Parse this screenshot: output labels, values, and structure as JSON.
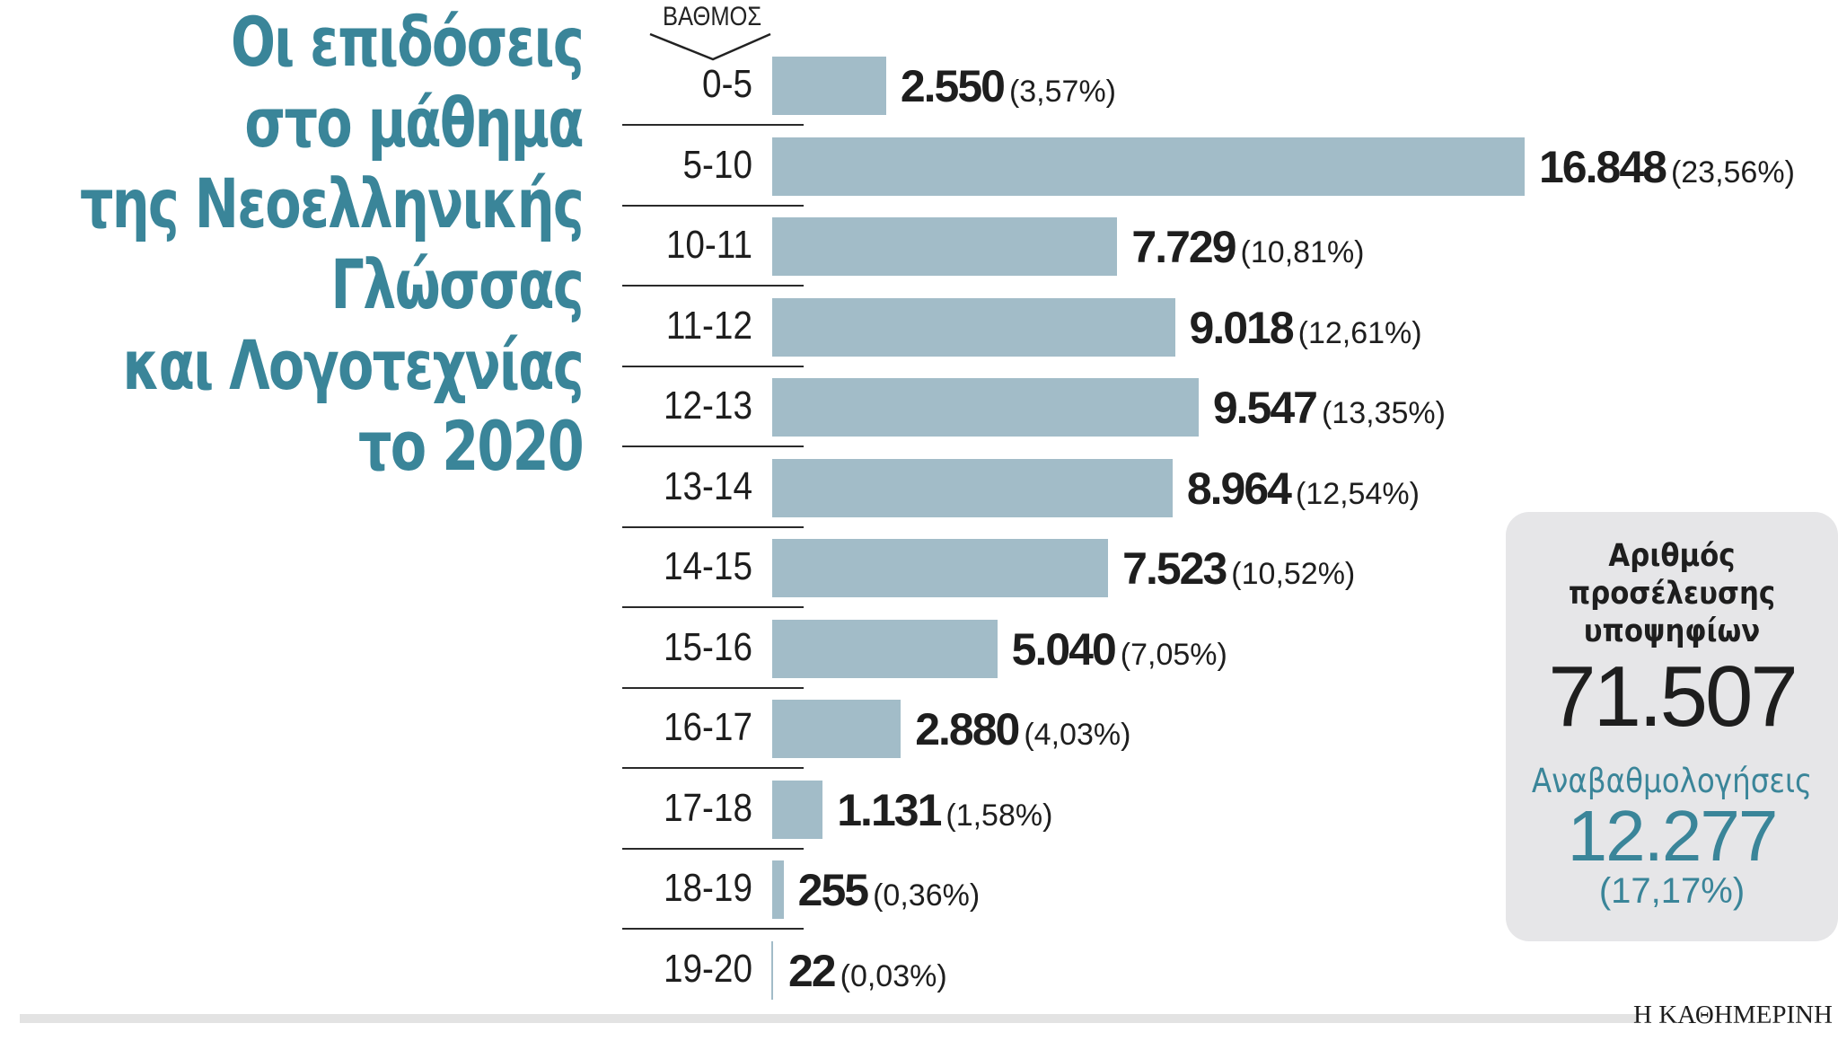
{
  "title": {
    "lines": [
      "Οι επιδόσεις",
      "στο μάθημα",
      "της Νεοελληνικής",
      "Γλώσσας",
      "και Λογοτεχνίας",
      "το 2020"
    ],
    "color": "#3a8599"
  },
  "axis": {
    "category_label": "ΒΑΘΜΟΣ"
  },
  "rows": [
    {
      "grade": "0-5",
      "value_label": "2.550",
      "pct_label": "(3,57%)"
    },
    {
      "grade": "5-10",
      "value_label": "16.848",
      "pct_label": "(23,56%)"
    },
    {
      "grade": "10-11",
      "value_label": "7.729",
      "pct_label": "(10,81%)"
    },
    {
      "grade": "11-12",
      "value_label": "9.018",
      "pct_label": "(12,61%)"
    },
    {
      "grade": "12-13",
      "value_label": "9.547",
      "pct_label": "(13,35%)"
    },
    {
      "grade": "13-14",
      "value_label": "8.964",
      "pct_label": "(12,54%)"
    },
    {
      "grade": "14-15",
      "value_label": "7.523",
      "pct_label": "(10,52%)"
    },
    {
      "grade": "15-16",
      "value_label": "5.040",
      "pct_label": "(7,05%)"
    },
    {
      "grade": "16-17",
      "value_label": "2.880",
      "pct_label": "(4,03%)"
    },
    {
      "grade": "17-18",
      "value_label": "1.131",
      "pct_label": "(1,58%)"
    },
    {
      "grade": "18-19",
      "value_label": "255",
      "pct_label": "(0,36%)"
    },
    {
      "grade": "19-20",
      "value_label": "22",
      "pct_label": "(0,03%)"
    }
  ],
  "summary": {
    "attendance_label": "Αριθμός προσέλευσης υποψηφίων",
    "attendance_lines": [
      "Αριθμός",
      "προσέλευσης",
      "υποψηφίων"
    ],
    "attendance_value": "71.507",
    "regrades_label": "Αναβαθμολογήσεις",
    "regrades_value": "12.277",
    "regrades_pct": "(17,17%)"
  },
  "source": "Η ΚΑΘΗΜΕΡΙΝΗ",
  "colors": {
    "bar": "#a2bcc8",
    "accent": "#3a8599",
    "text": "#1e1e1e",
    "box_bg": "#e6e6e8"
  },
  "chart_data": {
    "type": "bar",
    "orientation": "horizontal",
    "title": "Οι επιδόσεις στο μάθημα της Νεοελληνικής Γλώσσας και Λογοτεχνίας το 2020",
    "xlabel": "",
    "ylabel": "ΒΑΘΜΟΣ",
    "categories": [
      "0-5",
      "5-10",
      "10-11",
      "11-12",
      "12-13",
      "13-14",
      "14-15",
      "15-16",
      "16-17",
      "17-18",
      "18-19",
      "19-20"
    ],
    "values": [
      2550,
      16848,
      7729,
      9018,
      9547,
      8964,
      7523,
      5040,
      2880,
      1131,
      255,
      22
    ],
    "percentages": [
      3.57,
      23.56,
      10.81,
      12.61,
      13.35,
      12.54,
      10.52,
      7.05,
      4.03,
      1.58,
      0.36,
      0.03
    ],
    "grid": false,
    "legend": null,
    "annotations": [
      {
        "label": "Αριθμός προσέλευσης υποψηφίων",
        "value": 71507
      },
      {
        "label": "Αναβαθμολογήσεις",
        "value": 12277,
        "pct": 17.17
      }
    ]
  }
}
